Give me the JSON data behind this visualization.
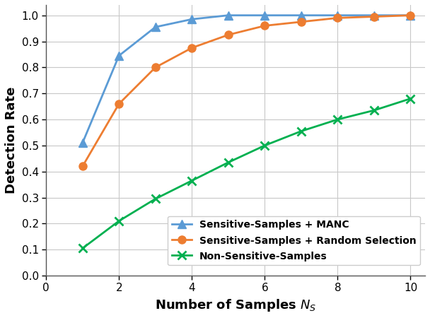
{
  "x": [
    1,
    2,
    3,
    4,
    5,
    6,
    7,
    8,
    9,
    10
  ],
  "manc": [
    0.51,
    0.845,
    0.955,
    0.985,
    1.0,
    1.0,
    1.0,
    1.0,
    1.0,
    1.0
  ],
  "random": [
    0.42,
    0.66,
    0.8,
    0.875,
    0.925,
    0.96,
    0.975,
    0.99,
    0.995,
    1.0
  ],
  "non_sensitive": [
    0.105,
    0.21,
    0.295,
    0.365,
    0.435,
    0.5,
    0.555,
    0.6,
    0.635,
    0.68
  ],
  "manc_color": "#5B9BD5",
  "random_color": "#ED7D31",
  "non_sensitive_color": "#00B050",
  "xlabel": "Number of Samples $N_S$",
  "ylabel": "Detection Rate",
  "xlim": [
    0,
    10.4
  ],
  "ylim": [
    0,
    1.04
  ],
  "xticks": [
    0,
    2,
    4,
    6,
    8,
    10
  ],
  "yticks": [
    0,
    0.1,
    0.2,
    0.3,
    0.4,
    0.5,
    0.6,
    0.7,
    0.8,
    0.9,
    1.0
  ],
  "legend_manc": "Sensitive-Samples + MANC",
  "legend_random": "Sensitive-Samples + Random Selection",
  "legend_non": "Non-Sensitive-Samples",
  "grid_color": "#C8C8C8",
  "bg_color": "#FFFFFF"
}
